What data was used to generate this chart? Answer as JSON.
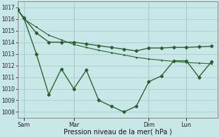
{
  "xlabel": "Pression niveau de la mer( hPa )",
  "bg_color": "#c8e8e8",
  "grid_color": "#a8cccc",
  "line_color": "#2a6030",
  "ylim": [
    1007.5,
    1017.5
  ],
  "yticks": [
    1008,
    1009,
    1010,
    1011,
    1012,
    1013,
    1014,
    1015,
    1016,
    1017
  ],
  "xtick_labels": [
    "Sam",
    "Mar",
    "Dim",
    "Lun"
  ],
  "xtick_positions": [
    0.5,
    4.5,
    10.5,
    13.5
  ],
  "xlim": [
    0,
    16
  ],
  "line_upper_x": [
    0,
    0.5,
    1.5,
    2.5,
    3.5,
    4.5,
    5.5,
    6.5,
    7.5,
    8.5,
    9.5,
    10.5,
    11.5,
    12.5,
    13.5,
    14.5,
    15.5
  ],
  "line_upper_y": [
    1016.8,
    1016.1,
    1014.8,
    1014.0,
    1014.0,
    1014.0,
    1013.85,
    1013.7,
    1013.55,
    1013.4,
    1013.25,
    1013.5,
    1013.5,
    1013.55,
    1013.55,
    1013.6,
    1013.65
  ],
  "line_lower_x": [
    0,
    0.5,
    1.5,
    2.5,
    3.5,
    4.5,
    5.5,
    6.5,
    7.5,
    8.5,
    9.5,
    10.5,
    11.5,
    12.5,
    13.5,
    14.5,
    15.5
  ],
  "line_lower_y": [
    1016.8,
    1016.1,
    1013.0,
    1009.5,
    1011.7,
    1010.0,
    1011.6,
    1009.0,
    1008.5,
    1008.0,
    1008.5,
    1010.6,
    1011.1,
    1012.4,
    1012.4,
    1011.0,
    1012.3
  ],
  "line_trend_x": [
    0,
    0.5,
    1.5,
    2.5,
    3.5,
    4.5,
    5.5,
    6.5,
    7.5,
    8.5,
    9.5,
    10.5,
    11.5,
    12.5,
    13.5,
    14.5,
    15.5
  ],
  "line_trend_y": [
    1016.8,
    1016.0,
    1015.3,
    1014.6,
    1014.2,
    1013.8,
    1013.55,
    1013.3,
    1013.1,
    1012.9,
    1012.7,
    1012.55,
    1012.45,
    1012.35,
    1012.25,
    1012.2,
    1012.15
  ],
  "figsize": [
    3.2,
    2.0
  ],
  "dpi": 100
}
